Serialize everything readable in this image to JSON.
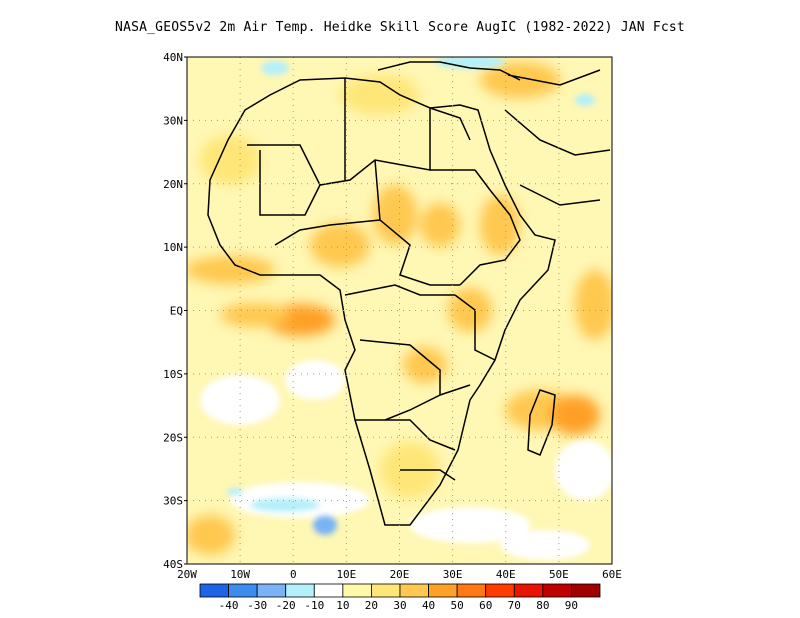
{
  "title": "NASA_GEOS5v2  2m Air Temp. Heidke Skill Score AugIC (1982-2022) JAN Fcst",
  "lat_labels": [
    "40N",
    "30N",
    "20N",
    "10N",
    "EQ",
    "10S",
    "20S",
    "30S",
    "40S"
  ],
  "lon_labels": [
    "20W",
    "10W",
    "0",
    "10E",
    "20E",
    "30E",
    "40E",
    "50E",
    "60E"
  ],
  "map_extent": {
    "lon_min": -20,
    "lon_max": 60,
    "lat_min": -40,
    "lat_max": 40
  },
  "colorbar": {
    "labels": [
      "-40",
      "-30",
      "-20",
      "-10",
      "10",
      "20",
      "30",
      "40",
      "50",
      "60",
      "70",
      "80",
      "90"
    ],
    "colors": [
      "#1e64e6",
      "#3c8cf0",
      "#78b4f5",
      "#b4f0fa",
      "#ffffff",
      "#fffaaa",
      "#ffe678",
      "#ffc850",
      "#ffa028",
      "#ff7814",
      "#ff3c00",
      "#e61400",
      "#c00000",
      "#a00000"
    ]
  },
  "colors": {
    "land_outline": "#000000",
    "grid": "#999999",
    "background": "#ffffff"
  }
}
